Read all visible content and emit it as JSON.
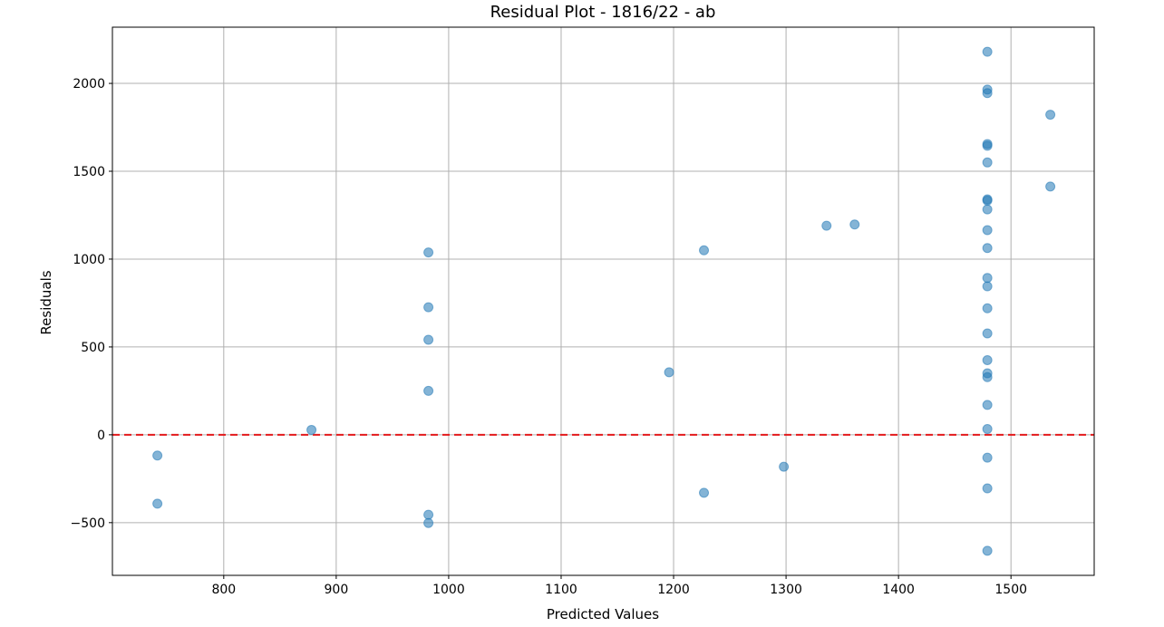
{
  "chart_data": {
    "type": "scatter",
    "title": "Residual Plot - 1816/22 - ab",
    "xlabel": "Predicted Values",
    "ylabel": "Residuals",
    "xlim": [
      701,
      1574
    ],
    "ylim": [
      -800,
      2320
    ],
    "xticks": [
      800,
      900,
      1000,
      1100,
      1200,
      1300,
      1400,
      1500
    ],
    "yticks": [
      -500,
      0,
      500,
      1000,
      1500,
      2000
    ],
    "xtick_labels": [
      "800",
      "900",
      "1000",
      "1100",
      "1200",
      "1300",
      "1400",
      "1500"
    ],
    "ytick_labels": [
      "−500",
      "0",
      "500",
      "1000",
      "1500",
      "2000"
    ],
    "grid": true,
    "reference_line": {
      "y": 0,
      "color": "#e31a1c",
      "style": "dashed"
    },
    "marker_color": "#1f77b4",
    "marker_alpha": 0.55,
    "points": [
      {
        "x": 741,
        "y": -118
      },
      {
        "x": 741,
        "y": -392
      },
      {
        "x": 878,
        "y": 28
      },
      {
        "x": 982,
        "y": 1038
      },
      {
        "x": 982,
        "y": 726
      },
      {
        "x": 982,
        "y": 541
      },
      {
        "x": 982,
        "y": 250
      },
      {
        "x": 982,
        "y": -455
      },
      {
        "x": 982,
        "y": -502
      },
      {
        "x": 1196,
        "y": 356
      },
      {
        "x": 1227,
        "y": 1050
      },
      {
        "x": 1227,
        "y": -330
      },
      {
        "x": 1298,
        "y": -182
      },
      {
        "x": 1336,
        "y": 1190
      },
      {
        "x": 1361,
        "y": 1197
      },
      {
        "x": 1479,
        "y": 2180
      },
      {
        "x": 1479,
        "y": 1965
      },
      {
        "x": 1479,
        "y": 1945
      },
      {
        "x": 1479,
        "y": 1655
      },
      {
        "x": 1479,
        "y": 1645
      },
      {
        "x": 1479,
        "y": 1550
      },
      {
        "x": 1479,
        "y": 1340
      },
      {
        "x": 1479,
        "y": 1333
      },
      {
        "x": 1479,
        "y": 1283
      },
      {
        "x": 1479,
        "y": 1165
      },
      {
        "x": 1479,
        "y": 1063
      },
      {
        "x": 1479,
        "y": 893
      },
      {
        "x": 1479,
        "y": 845
      },
      {
        "x": 1479,
        "y": 720
      },
      {
        "x": 1479,
        "y": 577
      },
      {
        "x": 1479,
        "y": 425
      },
      {
        "x": 1479,
        "y": 350
      },
      {
        "x": 1479,
        "y": 328
      },
      {
        "x": 1479,
        "y": 170
      },
      {
        "x": 1479,
        "y": 33
      },
      {
        "x": 1479,
        "y": -130
      },
      {
        "x": 1479,
        "y": -305
      },
      {
        "x": 1479,
        "y": -660
      },
      {
        "x": 1535,
        "y": 1822
      },
      {
        "x": 1535,
        "y": 1413
      }
    ]
  }
}
